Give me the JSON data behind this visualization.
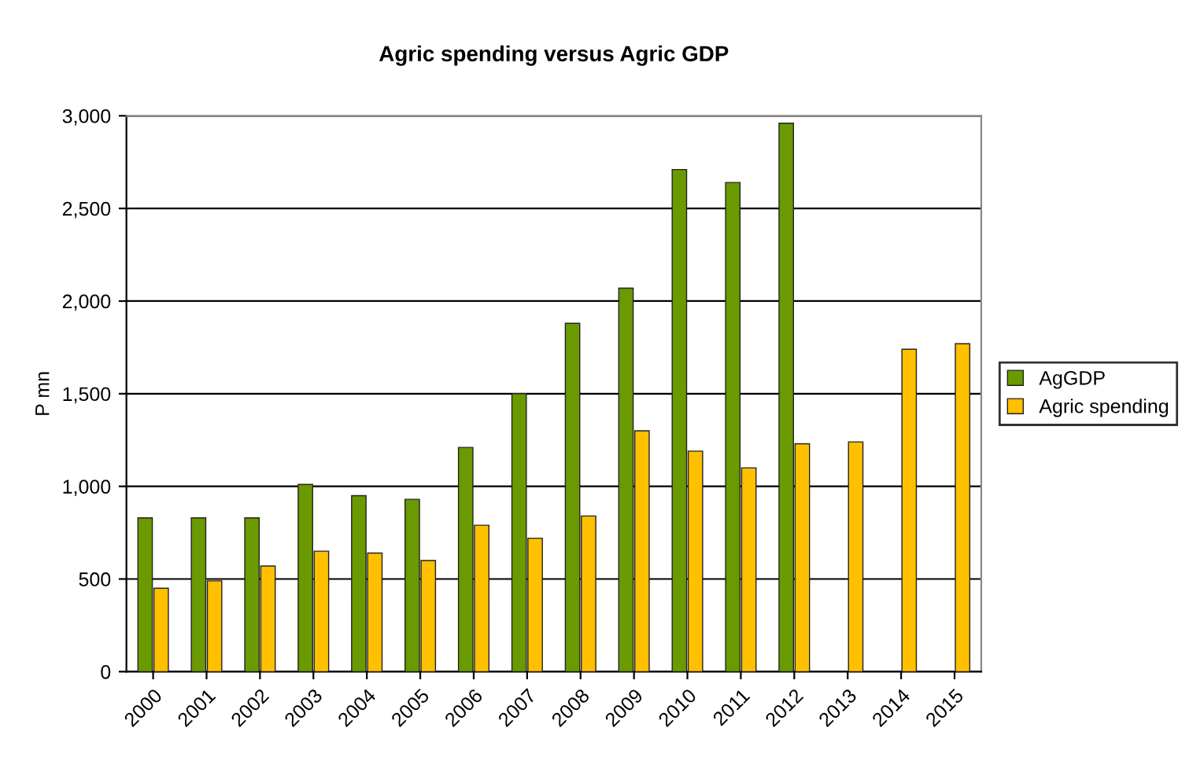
{
  "chart_data": {
    "type": "bar",
    "title": "Agric spending versus Agric GDP",
    "ylabel": "P mn",
    "categories": [
      "2000",
      "2001",
      "2002",
      "2003",
      "2004",
      "2005",
      "2006",
      "2007",
      "2008",
      "2009",
      "2010",
      "2011",
      "2012",
      "2013",
      "2014",
      "2015"
    ],
    "series": [
      {
        "name": "AgGDP",
        "color": "#6a9a00",
        "values": [
          830,
          830,
          830,
          1010,
          950,
          930,
          1210,
          1500,
          1880,
          2070,
          2710,
          2640,
          2960,
          null,
          null,
          null
        ]
      },
      {
        "name": "Agric spending",
        "color": "#ffc000",
        "values": [
          450,
          490,
          570,
          650,
          640,
          600,
          790,
          720,
          840,
          1300,
          1190,
          1100,
          1230,
          1240,
          1740,
          1770
        ]
      }
    ],
    "ylim": [
      0,
      3000
    ],
    "yticks": [
      0,
      500,
      {
        "value": 1000,
        "label": "1,000"
      },
      {
        "value": 1500,
        "label": "1,500"
      },
      {
        "value": 2000,
        "label": "2,000"
      },
      {
        "value": 2500,
        "label": "2,500"
      },
      {
        "value": 3000,
        "label": "3,000"
      }
    ],
    "grid": "y",
    "legend": "right"
  }
}
